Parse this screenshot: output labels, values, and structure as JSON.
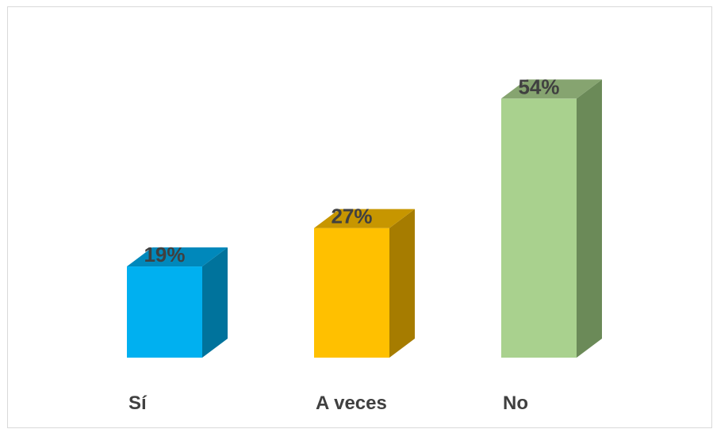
{
  "chart_data": {
    "type": "bar",
    "categories": [
      "Sí",
      "A veces",
      "No"
    ],
    "values": [
      19,
      27,
      54
    ],
    "value_labels": [
      "19%",
      "27%",
      "54%"
    ],
    "unit": "%",
    "title": "",
    "xlabel": "",
    "ylabel": "",
    "ylim": [
      0,
      60
    ],
    "grid": false,
    "legend": "none",
    "style": "3d-column",
    "colors": [
      {
        "front": "#00b0f0",
        "side": "#00739c",
        "top": "#0088bb"
      },
      {
        "front": "#ffc000",
        "side": "#a67c00",
        "top": "#c79600"
      },
      {
        "front": "#a9d18e",
        "side": "#6b8a58",
        "top": "#86a470"
      }
    ]
  }
}
